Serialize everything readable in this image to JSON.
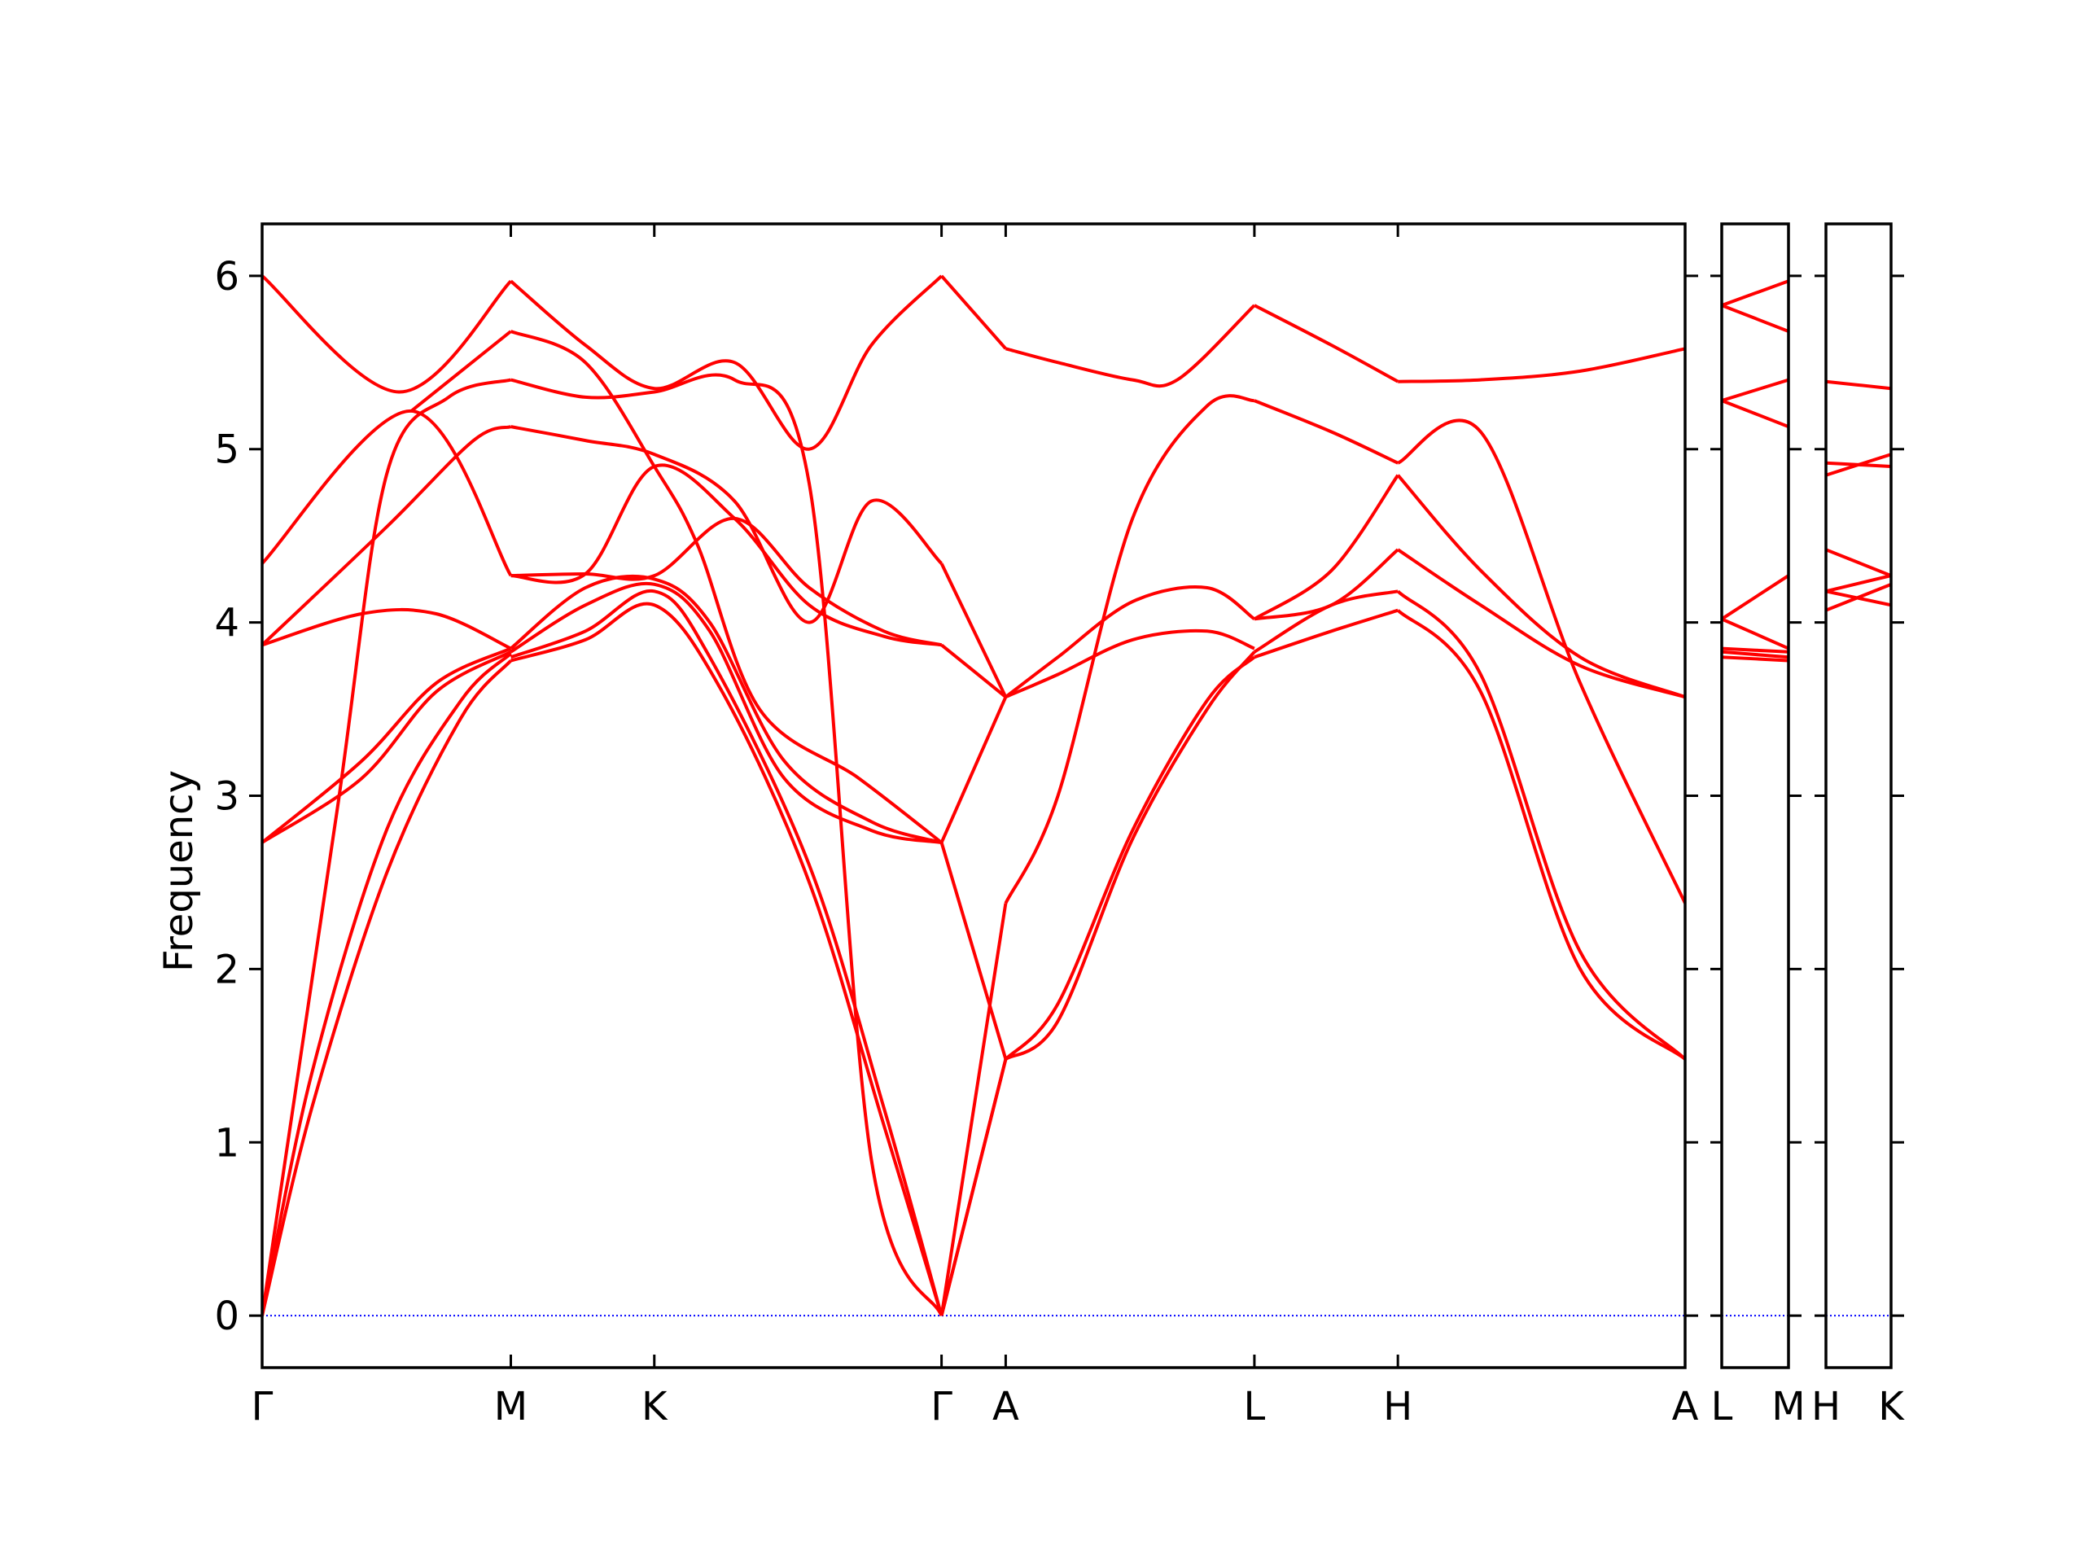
{
  "chart_data": {
    "type": "line",
    "title": "",
    "ylabel": "Frequency",
    "xlabel": "",
    "ylim": [
      -0.3,
      6.3
    ],
    "yticks": [
      0,
      1,
      2,
      3,
      4,
      5,
      6
    ],
    "grid": false,
    "colors": {
      "bands": "#ff0000",
      "zero_line": "#0000ff",
      "axes": "#000000"
    },
    "panels": [
      {
        "name": "main",
        "x_labels": [
          "Γ",
          "M",
          "K",
          "Γ",
          "A",
          "L",
          "H",
          "A"
        ],
        "x_pos": [
          0,
          1,
          1.577,
          2.732,
          2.99,
          3.99,
          4.567,
          5.722
        ],
        "series": [
          {
            "x": [
              0,
              0.2,
              0.5,
              0.8,
              1.0
            ],
            "y": [
              0,
              1.2,
              2.55,
              3.45,
              3.78
            ]
          },
          {
            "x": [
              0,
              0.2,
              0.5,
              0.8,
              1.0
            ],
            "y": [
              0,
              1.4,
              2.8,
              3.55,
              3.82
            ]
          },
          {
            "x": [
              0,
              0.3,
              0.5,
              0.75,
              1.0
            ],
            "y": [
              0,
              2.9,
              4.85,
              5.3,
              5.4
            ]
          },
          {
            "x": [
              0,
              0.4,
              0.7,
              1.0
            ],
            "y": [
              2.73,
              3.1,
              3.6,
              3.83
            ]
          },
          {
            "x": [
              0,
              0.4,
              0.7,
              1.0
            ],
            "y": [
              2.73,
              3.2,
              3.65,
              3.85
            ]
          },
          {
            "x": [
              0,
              0.4,
              0.7,
              1.0
            ],
            "y": [
              3.87,
              4.05,
              4.05,
              3.85
            ]
          },
          {
            "x": [
              0,
              0.5,
              0.85,
              1.0
            ],
            "y": [
              3.87,
              4.55,
              5.05,
              5.13
            ]
          },
          {
            "x": [
              0,
              0.6,
              1.0
            ],
            "y": [
              4.34,
              5.22,
              4.27
            ]
          },
          {
            "x": [
              0,
              0.55,
              1.0
            ],
            "y": [
              6.0,
              5.33,
              5.97
            ]
          },
          {
            "x": [
              0.6,
              1.0
            ],
            "y": [
              5.22,
              5.68
            ]
          },
          {
            "x": [
              1.0,
              1.3,
              1.577,
              1.85,
              2.2,
              2.5,
              2.732
            ],
            "y": [
              3.78,
              3.9,
              4.1,
              3.6,
              2.5,
              1.1,
              0
            ]
          },
          {
            "x": [
              1.0,
              1.3,
              1.577,
              1.8,
              2.2,
              2.5,
              2.732
            ],
            "y": [
              3.8,
              3.95,
              4.18,
              3.8,
              2.6,
              1.2,
              0
            ]
          },
          {
            "x": [
              1.0,
              1.3,
              1.577,
              1.8,
              2.1,
              2.45,
              2.732
            ],
            "y": [
              3.83,
              4.1,
              4.22,
              3.95,
              3.1,
              2.8,
              2.73
            ]
          },
          {
            "x": [
              1.0,
              1.3,
              1.577,
              1.8,
              2.1,
              2.45,
              2.732
            ],
            "y": [
              3.85,
              4.2,
              4.25,
              4.0,
              3.2,
              2.85,
              2.73
            ]
          },
          {
            "x": [
              1.0,
              1.3,
              1.577,
              1.9,
              2.2,
              2.5,
              2.732
            ],
            "y": [
              4.27,
              4.28,
              4.27,
              4.6,
              4.2,
              3.95,
              3.87
            ]
          },
          {
            "x": [
              1.0,
              1.3,
              1.577,
              1.9,
              2.2,
              2.5,
              2.732
            ],
            "y": [
              4.27,
              4.28,
              4.9,
              4.6,
              4.1,
              3.92,
              3.87
            ]
          },
          {
            "x": [
              1.0,
              1.3,
              1.577,
              1.9,
              2.2,
              2.45,
              2.732
            ],
            "y": [
              5.13,
              5.05,
              4.97,
              4.7,
              4.0,
              4.7,
              4.34
            ]
          },
          {
            "x": [
              1.0,
              1.3,
              1.577,
              1.9,
              2.2,
              2.45,
              2.732
            ],
            "y": [
              5.4,
              5.3,
              5.33,
              5.4,
              4.8,
              0.9,
              0
            ]
          },
          {
            "x": [
              1.0,
              1.3,
              1.577,
              1.9,
              2.2,
              2.45,
              2.732
            ],
            "y": [
              5.97,
              5.6,
              5.35,
              5.5,
              5.0,
              5.6,
              6.0
            ]
          },
          {
            "x": [
              1.0,
              1.3,
              1.577,
              1.75,
              2.0,
              2.4,
              2.732
            ],
            "y": [
              5.68,
              5.5,
              4.9,
              4.45,
              3.5,
              3.1,
              2.73
            ]
          },
          {
            "x": [
              2.732,
              2.99
            ],
            "y": [
              0,
              1.48
            ]
          },
          {
            "x": [
              2.732,
              2.99
            ],
            "y": [
              0,
              1.48
            ]
          },
          {
            "x": [
              2.732,
              2.99
            ],
            "y": [
              2.73,
              1.48
            ]
          },
          {
            "x": [
              2.732,
              2.99
            ],
            "y": [
              2.73,
              3.57
            ]
          },
          {
            "x": [
              2.732,
              2.99
            ],
            "y": [
              3.87,
              3.57
            ]
          },
          {
            "x": [
              2.732,
              2.99
            ],
            "y": [
              4.34,
              3.57
            ]
          },
          {
            "x": [
              2.732,
              2.99
            ],
            "y": [
              6.0,
              5.58
            ]
          },
          {
            "x": [
              2.732,
              2.99
            ],
            "y": [
              0,
              2.38
            ]
          },
          {
            "x": [
              2.99,
              3.2,
              3.5,
              3.8,
              3.99
            ],
            "y": [
              1.48,
              1.8,
              2.8,
              3.55,
              3.8
            ]
          },
          {
            "x": [
              2.99,
              3.2,
              3.5,
              3.8,
              3.99
            ],
            "y": [
              1.48,
              1.7,
              2.75,
              3.5,
              3.83
            ]
          },
          {
            "x": [
              2.99,
              3.2,
              3.5,
              3.8,
              3.99
            ],
            "y": [
              2.38,
              3.0,
              4.6,
              5.25,
              5.28
            ]
          },
          {
            "x": [
              2.99,
              3.2,
              3.5,
              3.8,
              3.99
            ],
            "y": [
              3.57,
              3.8,
              4.12,
              4.2,
              4.02
            ]
          },
          {
            "x": [
              2.99,
              3.2,
              3.5,
              3.8,
              3.99
            ],
            "y": [
              3.57,
              3.7,
              3.9,
              3.95,
              3.85
            ]
          },
          {
            "x": [
              2.99,
              3.2,
              3.5,
              3.68,
              3.99
            ],
            "y": [
              5.58,
              5.5,
              5.4,
              5.4,
              5.83
            ]
          },
          {
            "x": [
              3.99,
              4.3,
              4.567
            ],
            "y": [
              3.8,
              3.95,
              4.07
            ]
          },
          {
            "x": [
              3.99,
              4.3,
              4.567
            ],
            "y": [
              3.83,
              4.1,
              4.18
            ]
          },
          {
            "x": [
              3.99,
              4.3,
              4.567
            ],
            "y": [
              4.02,
              4.1,
              4.42
            ]
          },
          {
            "x": [
              3.99,
              4.3,
              4.567
            ],
            "y": [
              4.02,
              4.3,
              4.85
            ]
          },
          {
            "x": [
              3.99,
              4.3,
              4.567
            ],
            "y": [
              5.28,
              5.1,
              4.92
            ]
          },
          {
            "x": [
              3.99,
              4.3,
              4.567
            ],
            "y": [
              5.83,
              5.6,
              5.39
            ]
          },
          {
            "x": [
              4.567,
              4.9,
              5.3,
              5.722
            ],
            "y": [
              4.07,
              3.6,
              2.0,
              1.48
            ]
          },
          {
            "x": [
              4.567,
              4.9,
              5.3,
              5.722
            ],
            "y": [
              4.18,
              3.7,
              2.1,
              1.48
            ]
          },
          {
            "x": [
              4.567,
              4.9,
              5.3,
              5.722
            ],
            "y": [
              4.42,
              4.1,
              3.75,
              3.57
            ]
          },
          {
            "x": [
              4.567,
              4.9,
              5.3,
              5.722
            ],
            "y": [
              4.85,
              4.3,
              3.8,
              3.57
            ]
          },
          {
            "x": [
              4.567,
              4.9,
              5.3,
              5.722
            ],
            "y": [
              4.92,
              5.1,
              3.65,
              2.38
            ]
          },
          {
            "x": [
              4.567,
              4.9,
              5.3,
              5.722
            ],
            "y": [
              5.39,
              5.4,
              5.45,
              5.58
            ]
          }
        ]
      },
      {
        "name": "L-M",
        "x_labels": [
          "L",
          "M"
        ],
        "x_pos": [
          0,
          1
        ],
        "series": [
          {
            "x": [
              0,
              1
            ],
            "y": [
              3.8,
              3.78
            ]
          },
          {
            "x": [
              0,
              1
            ],
            "y": [
              3.83,
              3.8
            ]
          },
          {
            "x": [
              0,
              1
            ],
            "y": [
              3.85,
              3.83
            ]
          },
          {
            "x": [
              0,
              1
            ],
            "y": [
              4.02,
              3.85
            ]
          },
          {
            "x": [
              0,
              1
            ],
            "y": [
              4.02,
              4.27
            ]
          },
          {
            "x": [
              0,
              1
            ],
            "y": [
              5.28,
              5.13
            ]
          },
          {
            "x": [
              0,
              1
            ],
            "y": [
              5.28,
              5.4
            ]
          },
          {
            "x": [
              0,
              1
            ],
            "y": [
              5.83,
              5.68
            ]
          },
          {
            "x": [
              0,
              1
            ],
            "y": [
              5.83,
              5.97
            ]
          }
        ]
      },
      {
        "name": "H-K",
        "x_labels": [
          "H",
          "K"
        ],
        "x_pos": [
          0,
          1
        ],
        "series": [
          {
            "x": [
              0,
              1
            ],
            "y": [
              4.07,
              4.22
            ]
          },
          {
            "x": [
              0,
              1
            ],
            "y": [
              4.18,
              4.1
            ]
          },
          {
            "x": [
              0,
              1
            ],
            "y": [
              4.18,
              4.27
            ]
          },
          {
            "x": [
              0,
              1
            ],
            "y": [
              4.42,
              4.27
            ]
          },
          {
            "x": [
              0,
              1
            ],
            "y": [
              4.85,
              4.97
            ]
          },
          {
            "x": [
              0,
              1
            ],
            "y": [
              4.92,
              4.9
            ]
          },
          {
            "x": [
              0,
              1
            ],
            "y": [
              5.39,
              5.35
            ]
          }
        ]
      }
    ]
  }
}
